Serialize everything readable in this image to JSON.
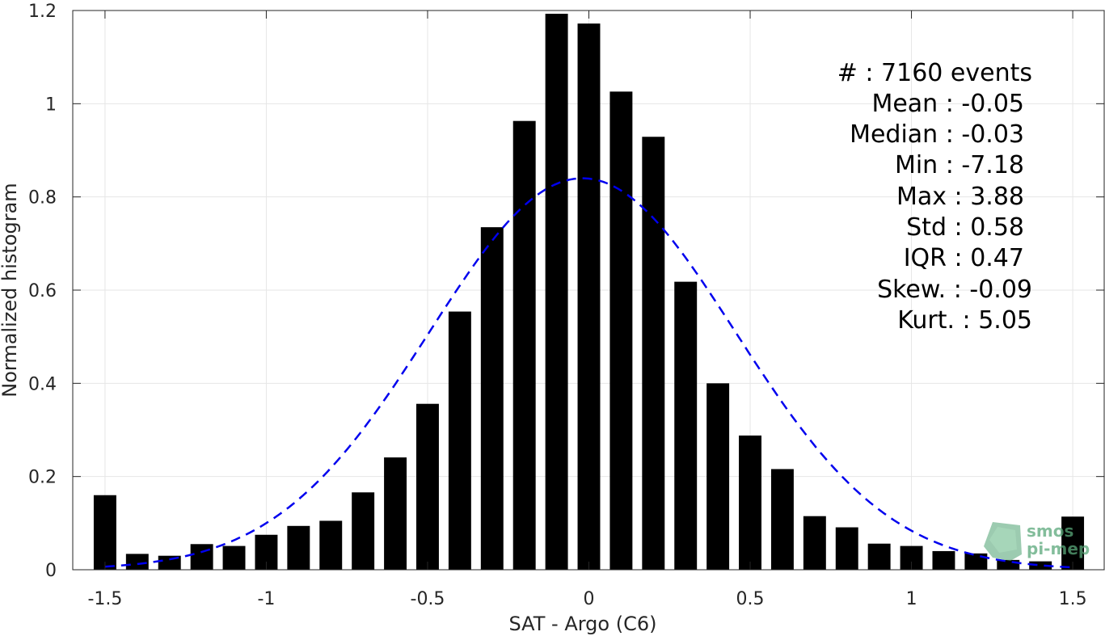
{
  "chart_data": {
    "type": "bar",
    "xlabel": "SAT - Argo (C6)",
    "ylabel": "Normalized histogram",
    "xlim": [
      -1.6,
      1.6
    ],
    "ylim": [
      0,
      1.2
    ],
    "x_ticks": [
      -1.5,
      -1,
      -0.5,
      0,
      0.5,
      1,
      1.5
    ],
    "x_tick_labels": [
      "-1.5",
      "-1",
      "-0.5",
      "0",
      "0.5",
      "1",
      "1.5"
    ],
    "y_ticks": [
      0,
      0.2,
      0.4,
      0.6,
      0.8,
      1,
      1.2
    ],
    "y_tick_labels": [
      "0",
      "0.2",
      "0.4",
      "0.6",
      "0.8",
      "1",
      "1.2"
    ],
    "grid": true,
    "bar_width": 0.07,
    "bar_color": "#000000",
    "x": [
      -1.5,
      -1.4,
      -1.3,
      -1.2,
      -1.1,
      -1.0,
      -0.9,
      -0.8,
      -0.7,
      -0.6,
      -0.5,
      -0.4,
      -0.3,
      -0.2,
      -0.1,
      0.0,
      0.1,
      0.2,
      0.3,
      0.4,
      0.5,
      0.6,
      0.7,
      0.8,
      0.9,
      1.0,
      1.1,
      1.2,
      1.3,
      1.4,
      1.5
    ],
    "values": [
      0.16,
      0.034,
      0.03,
      0.055,
      0.051,
      0.075,
      0.094,
      0.105,
      0.166,
      0.241,
      0.356,
      0.554,
      0.735,
      0.963,
      1.193,
      1.172,
      1.026,
      0.929,
      0.618,
      0.4,
      0.288,
      0.216,
      0.115,
      0.091,
      0.056,
      0.051,
      0.04,
      0.035,
      0.021,
      0.018,
      0.114
    ],
    "fit_curve": {
      "type": "gaussian",
      "mean": -0.02,
      "std": 0.475,
      "peak": 0.84,
      "x_range": [
        -1.5,
        1.5
      ],
      "color": "#0000ee",
      "style": "dashed"
    },
    "stats_annotation": [
      "#  : 7160 events",
      "Mean : -0.05",
      "Median : -0.03",
      "Min : -7.18",
      "Max : 3.88",
      "Std : 0.58",
      "IQR : 0.47",
      "Skew. : -0.09",
      "Kurt. : 5.05"
    ]
  },
  "logo": {
    "line1": "smos",
    "line2": "pi-mep",
    "color": "#5aa87a"
  }
}
